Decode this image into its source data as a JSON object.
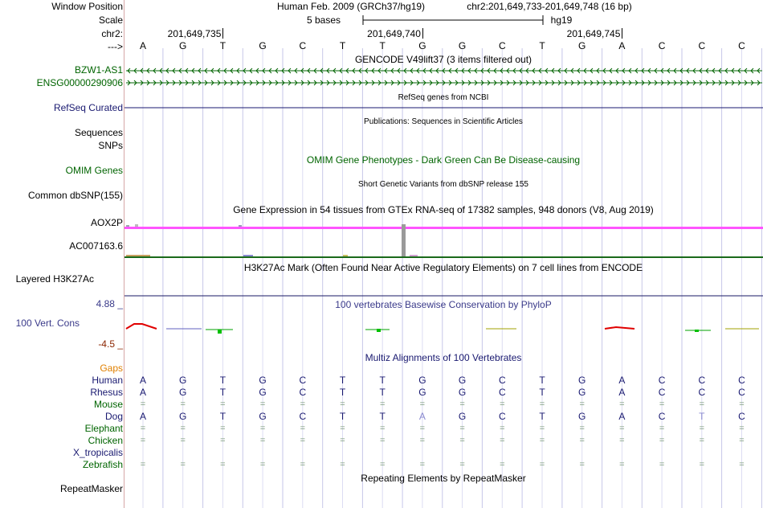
{
  "labels": {
    "window_position": "Window Position",
    "scale": "Scale",
    "chrom": "chr2:",
    "arrow": "--->",
    "gene_bzw1": "BZW1-AS1",
    "gene_ensg": "ENSG00000290906",
    "refseq": "RefSeq Curated",
    "sequences": "Sequences",
    "snps": "SNPs",
    "omim": "OMIM Genes",
    "dbsnp": "Common dbSNP(155)",
    "aox2p": "AOX2P",
    "ac007163": "AC007163.6",
    "h3k27ac": "Layered H3K27Ac",
    "cons_max": "4.88 _",
    "cons_name": "100 Vert. Cons",
    "cons_min": "-4.5 _",
    "gaps": "Gaps",
    "species": [
      "Human",
      "Rhesus",
      "Mouse",
      "Dog",
      "Elephant",
      "Chicken",
      "X_tropicalis",
      "Zebrafish"
    ],
    "repeatmasker": "RepeatMasker"
  },
  "header": {
    "assembly": "Human Feb. 2009 (GRCh37/hg19)",
    "position": "chr2:201,649,733-201,649,748 (16 bp)",
    "scale_text": "5 bases",
    "scale_db": "hg19",
    "ticks": [
      "201,649,735",
      "201,649,740",
      "201,649,745"
    ]
  },
  "sequence": [
    "A",
    "G",
    "T",
    "G",
    "C",
    "T",
    "T",
    "G",
    "G",
    "C",
    "T",
    "G",
    "A",
    "C",
    "C",
    "C"
  ],
  "tracks": {
    "gencode_title": "GENCODE V49lift37 (3 items filtered out)",
    "refseq_title": "RefSeq genes from NCBI",
    "pubs_title": "Publications: Sequences in Scientific Articles",
    "omim_title": "OMIM Gene Phenotypes - Dark Green Can Be Disease-causing",
    "dbsnp_title": "Short Genetic Variants from dbSNP release 155",
    "gtex_title": "Gene Expression in 54 tissues from GTEx RNA-seq of 17382 samples, 948 donors (V8, Aug 2019)",
    "h3k27ac_title": "H3K27Ac Mark (Often Found Near Active Regulatory Elements) on 7 cell lines from ENCODE",
    "phylop_title": "100 vertebrates Basewise Conservation by PhyloP",
    "multiz_title": "Multiz Alignments of 100 Vertebrates",
    "repeat_title": "Repeating Elements by RepeatMasker"
  },
  "alignments": {
    "Human": [
      "A",
      "G",
      "T",
      "G",
      "C",
      "T",
      "T",
      "G",
      "G",
      "C",
      "T",
      "G",
      "A",
      "C",
      "C",
      "C"
    ],
    "Rhesus": [
      "A",
      "G",
      "T",
      "G",
      "C",
      "T",
      "T",
      "G",
      "G",
      "C",
      "T",
      "G",
      "A",
      "C",
      "C",
      "C"
    ],
    "Mouse": [
      "=",
      "=",
      "=",
      "=",
      "=",
      "=",
      "=",
      "=",
      "=",
      "=",
      "=",
      "=",
      "=",
      "=",
      "=",
      "="
    ],
    "Dog": [
      "A",
      "G",
      "T",
      "G",
      "C",
      "T",
      "T",
      "A",
      "G",
      "C",
      "T",
      "G",
      "A",
      "C",
      "T",
      "C"
    ],
    "Elephant": [
      "=",
      "=",
      "=",
      "=",
      "=",
      "=",
      "=",
      "=",
      "=",
      "=",
      "=",
      "=",
      "=",
      "=",
      "=",
      "="
    ],
    "Chicken": [
      "=",
      "=",
      "=",
      "=",
      "=",
      "=",
      "=",
      "=",
      "=",
      "=",
      "=",
      "=",
      "=",
      "=",
      "=",
      "="
    ],
    "X_tropicalis": [
      "",
      "",
      "",
      "",
      "",
      "",
      "",
      "",
      "",
      "",
      "",
      "",
      "",
      "",
      "",
      ""
    ],
    "Zebrafish": [
      "=",
      "=",
      "=",
      "=",
      "=",
      "=",
      "=",
      "=",
      "=",
      "=",
      "=",
      "=",
      "=",
      "=",
      "=",
      "="
    ]
  },
  "colors": {
    "gencode_green": "#006400",
    "refseq_navy": "#191970",
    "gtex_magenta": "#ff33ff",
    "h3k27ac_navy": "#1a1a66",
    "phylop_blue": "#3a3a8a",
    "omim_green": "#006400"
  }
}
